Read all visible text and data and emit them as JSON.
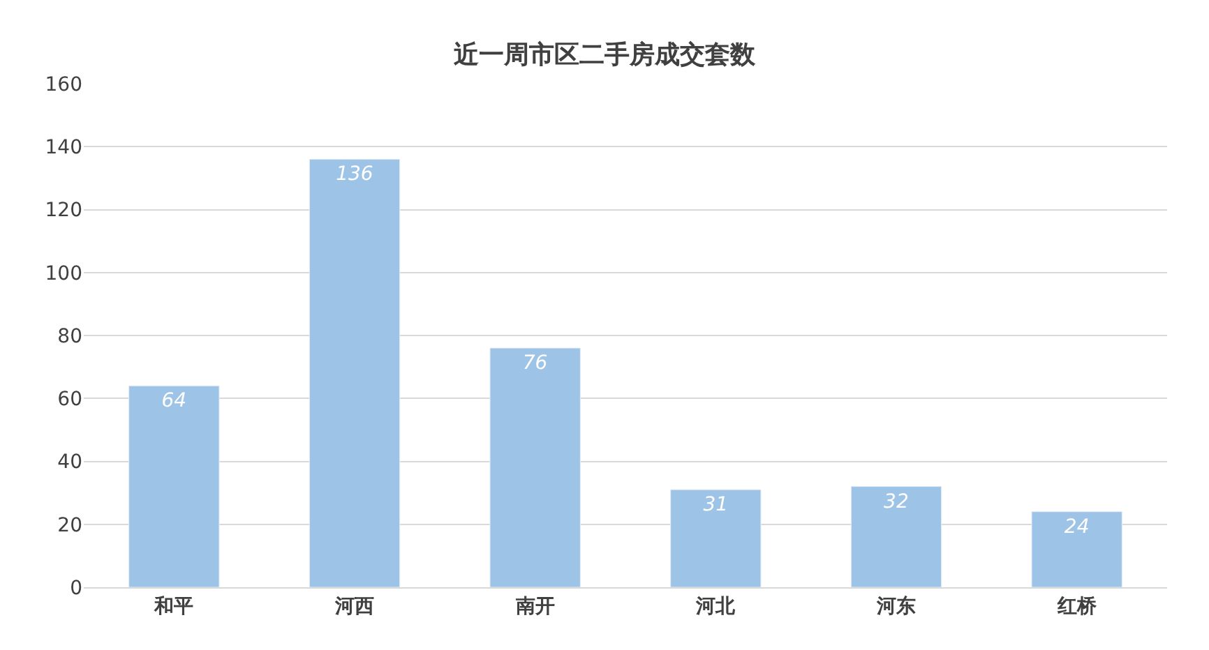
{
  "chart_data": {
    "type": "bar",
    "title": "近一周市区二手房成交套数",
    "categories": [
      "和平",
      "河西",
      "南开",
      "河北",
      "河东",
      "红桥"
    ],
    "values": [
      64,
      136,
      76,
      31,
      32,
      24
    ],
    "color": "#9dc3e6",
    "ylim": [
      0,
      160
    ],
    "yticks": [
      0,
      20,
      40,
      60,
      80,
      100,
      120,
      140,
      160
    ],
    "grid": "y",
    "data_labels": true,
    "legend": false
  }
}
